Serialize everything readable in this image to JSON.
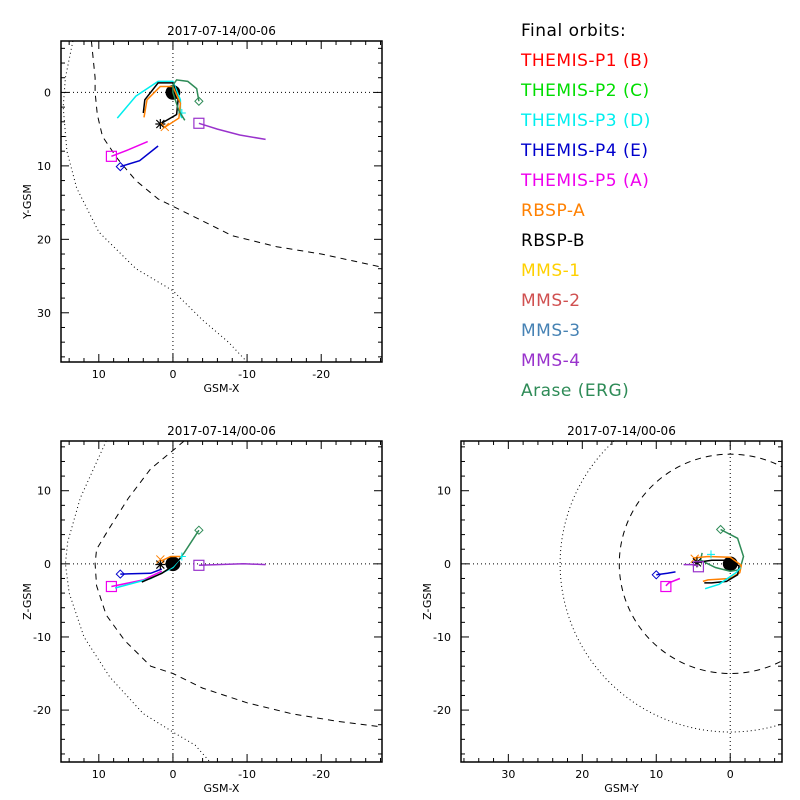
{
  "legend": {
    "title": "Final orbits:",
    "items": [
      {
        "label": "THEMIS-P1 (B)",
        "color": "#ff0000"
      },
      {
        "label": "THEMIS-P2 (C)",
        "color": "#00dd00"
      },
      {
        "label": "THEMIS-P3 (D)",
        "color": "#00eeee"
      },
      {
        "label": "THEMIS-P4 (E)",
        "color": "#0000cc"
      },
      {
        "label": "THEMIS-P5 (A)",
        "color": "#ee00ee"
      },
      {
        "label": "RBSP-A",
        "color": "#ff8000"
      },
      {
        "label": "RBSP-B",
        "color": "#000000"
      },
      {
        "label": "MMS-1",
        "color": "#ffd000"
      },
      {
        "label": "MMS-2",
        "color": "#d05050"
      },
      {
        "label": "MMS-3",
        "color": "#4682b4"
      },
      {
        "label": "MMS-4",
        "color": "#9932cc"
      },
      {
        "label": "Arase (ERG)",
        "color": "#2e8b57"
      }
    ]
  },
  "chart_data": [
    {
      "type": "line",
      "title": "2017-07-14/00-06",
      "xlabel": "GSM-X",
      "ylabel": "Y-GSM",
      "xlim": [
        15.1,
        -28.2
      ],
      "ylim": [
        -7.0,
        36.7
      ],
      "y_inverted": true,
      "xticks": [
        10,
        0,
        -10,
        -20
      ],
      "xtick_labels": [
        "10",
        "0",
        "-10",
        "-20"
      ],
      "yticks": [
        0,
        10,
        20,
        30
      ],
      "ytick_labels": [
        "0",
        "10",
        "20",
        "30"
      ],
      "boundaries": [
        {
          "name": "magnetopause",
          "style": "dashed",
          "points": [
            [
              11,
              -7
            ],
            [
              10.5,
              -2
            ],
            [
              10.5,
              0
            ],
            [
              10.2,
              3
            ],
            [
              9.5,
              6
            ],
            [
              7.5,
              9
            ],
            [
              5,
              12
            ],
            [
              2,
              14.5
            ],
            [
              0,
              15.5
            ],
            [
              -3,
              17
            ],
            [
              -8,
              19.5
            ],
            [
              -14,
              21
            ],
            [
              -20,
              22
            ],
            [
              -28.2,
              23.8
            ]
          ]
        },
        {
          "name": "bow-shock",
          "style": "dotted",
          "points": [
            [
              13.5,
              -7
            ],
            [
              14.5,
              -2
            ],
            [
              14.8,
              2
            ],
            [
              14.3,
              8
            ],
            [
              13,
              13
            ],
            [
              10,
              19
            ],
            [
              5,
              24
            ],
            [
              0,
              27
            ],
            [
              -4,
              31
            ],
            [
              -7.5,
              34
            ],
            [
              -10,
              36.7
            ]
          ]
        }
      ],
      "series": [
        {
          "name": "THEMIS-P3 (D)",
          "color": "#00eeee",
          "points": [
            [
              7.5,
              3.5
            ],
            [
              5,
              0.5
            ],
            [
              2,
              -1.5
            ],
            [
              0,
              -1.5
            ],
            [
              -1,
              1
            ],
            [
              -1,
              3
            ],
            [
              -1.2,
              3.5
            ]
          ],
          "marker": "plus",
          "end": [
            -1.2,
            2.8
          ]
        },
        {
          "name": "RBSP-B",
          "color": "#000000",
          "points": [
            [
              4,
              2.8
            ],
            [
              3.8,
              1
            ],
            [
              2,
              -1.3
            ],
            [
              0,
              -1.3
            ],
            [
              -0.7,
              1
            ],
            [
              -0.5,
              3
            ],
            [
              1.7,
              4.3
            ]
          ],
          "marker": "asterisk",
          "end": [
            1.7,
            4.3
          ]
        },
        {
          "name": "RBSP-A",
          "color": "#ff8000",
          "points": [
            [
              3.9,
              3.4
            ],
            [
              3.5,
              1
            ],
            [
              1.7,
              -0.8
            ],
            [
              0,
              -0.8
            ],
            [
              -1,
              1.5
            ],
            [
              -0.8,
              3.5
            ],
            [
              1.2,
              4.8
            ]
          ],
          "marker": "x",
          "end": [
            1.1,
            4.7
          ]
        },
        {
          "name": "Arase (ERG)",
          "color": "#2e8b57",
          "points": [
            [
              -1.6,
              3.8
            ],
            [
              -0.8,
              2.5
            ],
            [
              0,
              0
            ],
            [
              0,
              -1
            ],
            [
              -0.5,
              -1.7
            ],
            [
              -2,
              -1.5
            ],
            [
              -3.2,
              -0.5
            ],
            [
              -3.5,
              1.2
            ]
          ],
          "marker": "diamond",
          "end": [
            -3.5,
            1.2
          ]
        },
        {
          "name": "MMS-4",
          "color": "#9932cc",
          "points": [
            [
              -3.5,
              4.2
            ],
            [
              -6,
              5
            ],
            [
              -9,
              5.8
            ],
            [
              -12.5,
              6.4
            ]
          ],
          "marker": "square",
          "end": [
            -3.5,
            4.2
          ]
        },
        {
          "name": "THEMIS-P5 (A)",
          "color": "#ee00ee",
          "points": [
            [
              3.4,
              6.7
            ],
            [
              6,
              7.8
            ],
            [
              8.3,
              8.7
            ]
          ],
          "marker": "square",
          "end": [
            8.3,
            8.7
          ]
        },
        {
          "name": "THEMIS-P4 (E)",
          "color": "#0000cc",
          "points": [
            [
              2,
              7.3
            ],
            [
              4.5,
              9.3
            ],
            [
              7.1,
              10.1
            ]
          ],
          "marker": "diamond",
          "end": [
            7.1,
            10.1
          ]
        }
      ]
    },
    {
      "type": "line",
      "title": "2017-07-14/00-06",
      "xlabel": "GSM-X",
      "ylabel": "Z-GSM",
      "xlim": [
        15.1,
        -28.2
      ],
      "ylim": [
        16.8,
        -27.1
      ],
      "xticks": [
        10,
        0,
        -10,
        -20
      ],
      "xtick_labels": [
        "10",
        "0",
        "-10",
        "-20"
      ],
      "yticks": [
        10,
        0,
        -10,
        -20
      ],
      "ytick_labels": [
        "10",
        "0",
        "-10",
        "-20"
      ],
      "boundaries": [
        {
          "name": "magnetopause",
          "style": "dashed",
          "points": [
            [
              -1.5,
              16.8
            ],
            [
              0,
              15.5
            ],
            [
              3,
              13
            ],
            [
              6,
              9
            ],
            [
              8.5,
              5
            ],
            [
              10.3,
              2
            ],
            [
              10.5,
              0
            ],
            [
              10.3,
              -3
            ],
            [
              9,
              -7
            ],
            [
              6.5,
              -10.5
            ],
            [
              3,
              -14
            ],
            [
              0,
              -15
            ],
            [
              -4,
              -17
            ],
            [
              -10,
              -19
            ],
            [
              -16,
              -20.5
            ],
            [
              -22,
              -21.5
            ],
            [
              -28.2,
              -22.3
            ]
          ]
        },
        {
          "name": "bow-shock",
          "style": "dotted",
          "points": [
            [
              9,
              16.8
            ],
            [
              12.5,
              9
            ],
            [
              14.2,
              3
            ],
            [
              14.5,
              0
            ],
            [
              14,
              -4
            ],
            [
              12,
              -10
            ],
            [
              8.5,
              -15.5
            ],
            [
              4,
              -20.5
            ],
            [
              0,
              -23
            ],
            [
              -3,
              -24.8
            ],
            [
              -5,
              -27.1
            ]
          ]
        }
      ],
      "series": [
        {
          "name": "Arase (ERG)",
          "color": "#2e8b57",
          "points": [
            [
              0,
              -0.5
            ],
            [
              -1.5,
              1.5
            ],
            [
              -3.5,
              4.6
            ]
          ],
          "marker": "diamond",
          "end": [
            -3.5,
            4.6
          ]
        },
        {
          "name": "THEMIS-P4 (E)",
          "color": "#0000cc",
          "points": [
            [
              7.1,
              -1.4
            ],
            [
              3,
              -1.3
            ],
            [
              1.5,
              -0.7
            ]
          ],
          "marker": "diamond",
          "end": [
            7.1,
            -1.4
          ]
        },
        {
          "name": "THEMIS-P5 (A)",
          "color": "#ee00ee",
          "points": [
            [
              8.3,
              -3.1
            ],
            [
              4,
              -2.2
            ],
            [
              1.5,
              -1
            ]
          ],
          "marker": "square",
          "end": [
            8.3,
            -3.1
          ]
        },
        {
          "name": "THEMIS-P3 (D)",
          "color": "#00eeee",
          "points": [
            [
              7.8,
              -3.3
            ],
            [
              3,
              -2
            ],
            [
              0,
              -0.5
            ],
            [
              -1.2,
              1
            ]
          ],
          "marker": "plus",
          "end": [
            -1.2,
            1
          ]
        },
        {
          "name": "RBSP-B",
          "color": "#000000",
          "points": [
            [
              4.2,
              -2.5
            ],
            [
              1.5,
              -1.3
            ],
            [
              0,
              -0.3
            ],
            [
              -1,
              0.8
            ]
          ],
          "marker": "asterisk",
          "end": [
            1.7,
            -0.1
          ]
        },
        {
          "name": "RBSP-A",
          "color": "#ff8000",
          "points": [
            [
              1.6,
              0.4
            ],
            [
              0.3,
              1
            ],
            [
              -1,
              1
            ]
          ],
          "marker": "x",
          "end": [
            1.7,
            0.6
          ]
        },
        {
          "name": "MMS-4",
          "color": "#9932cc",
          "points": [
            [
              -3.5,
              -0.2
            ],
            [
              -6,
              -0.1
            ],
            [
              -9.5,
              0
            ],
            [
              -12.5,
              -0.1
            ]
          ],
          "marker": "square",
          "end": [
            -3.5,
            -0.2
          ]
        }
      ]
    },
    {
      "type": "line",
      "title": "2017-07-14/00-06",
      "xlabel": "GSM-Y",
      "ylabel": "Z-GSM",
      "xlim": [
        36.4,
        -7.0
      ],
      "ylim": [
        16.8,
        -27.1
      ],
      "xticks": [
        30,
        20,
        10,
        0
      ],
      "xtick_labels": [
        "30",
        "20",
        "10",
        "0"
      ],
      "yticks": [
        10,
        0,
        -10,
        -20
      ],
      "ytick_labels": [
        "10",
        "0",
        "-10",
        "-20"
      ],
      "boundaries": [
        {
          "name": "magnetopause",
          "style": "dashed",
          "circle": {
            "cx": 0,
            "cy": 0,
            "r": 15
          }
        },
        {
          "name": "bow-shock",
          "style": "dotted",
          "circle": {
            "cx": 0,
            "cy": 0,
            "r": 23
          }
        }
      ],
      "series": [
        {
          "name": "Arase (ERG)",
          "color": "#2e8b57",
          "points": [
            [
              1.3,
              4.7
            ],
            [
              -1,
              3.5
            ],
            [
              -1.8,
              1
            ],
            [
              -1.3,
              -0.8
            ],
            [
              0,
              -1
            ],
            [
              2,
              -0.5
            ],
            [
              4,
              0.5
            ],
            [
              3.8,
              1.5
            ]
          ],
          "marker": "diamond",
          "end": [
            1.3,
            4.7
          ]
        },
        {
          "name": "RBSP-A",
          "color": "#ff8000",
          "points": [
            [
              5,
              0.8
            ],
            [
              3,
              1
            ],
            [
              0,
              0.9
            ],
            [
              -1.5,
              -0.2
            ],
            [
              -1.3,
              -1.2
            ],
            [
              0,
              -2
            ],
            [
              3,
              -2.2
            ],
            [
              3.7,
              -2.4
            ]
          ],
          "marker": "x",
          "end": [
            4.8,
            0.7
          ]
        },
        {
          "name": "RBSP-B",
          "color": "#000000",
          "points": [
            [
              4.5,
              0.2
            ],
            [
              2.5,
              0.5
            ],
            [
              0,
              0.5
            ],
            [
              -1.2,
              -0.3
            ],
            [
              -1,
              -1.5
            ],
            [
              0.5,
              -2.4
            ],
            [
              2.5,
              -2.6
            ],
            [
              3.5,
              -2.6
            ]
          ],
          "marker": "asterisk",
          "end": [
            4.5,
            0.2
          ]
        },
        {
          "name": "THEMIS-P3 (D)",
          "color": "#00eeee",
          "points": [
            [
              3.4,
              -3.4
            ],
            [
              1.5,
              -2.8
            ],
            [
              -0.8,
              -1.2
            ],
            [
              -1.4,
              -0.5
            ]
          ],
          "marker": "plus",
          "end": [
            2.6,
            1.3
          ]
        },
        {
          "name": "MMS-4",
          "color": "#9932cc",
          "points": [
            [
              6.3,
              -0.1
            ],
            [
              5,
              -0.1
            ],
            [
              4.3,
              -0.3
            ]
          ],
          "marker": "square",
          "end": [
            4.3,
            -0.4
          ]
        },
        {
          "name": "THEMIS-P4 (E)",
          "color": "#0000cc",
          "points": [
            [
              10,
              -1.5
            ],
            [
              8.5,
              -1.3
            ],
            [
              7.4,
              -1.1
            ]
          ],
          "marker": "diamond",
          "end": [
            10,
            -1.5
          ]
        },
        {
          "name": "THEMIS-P5 (A)",
          "color": "#ee00ee",
          "points": [
            [
              8.7,
              -3
            ],
            [
              8.3,
              -2.6
            ],
            [
              6.8,
              -2
            ]
          ],
          "marker": "square",
          "end": [
            8.7,
            -3.1
          ]
        }
      ]
    }
  ]
}
